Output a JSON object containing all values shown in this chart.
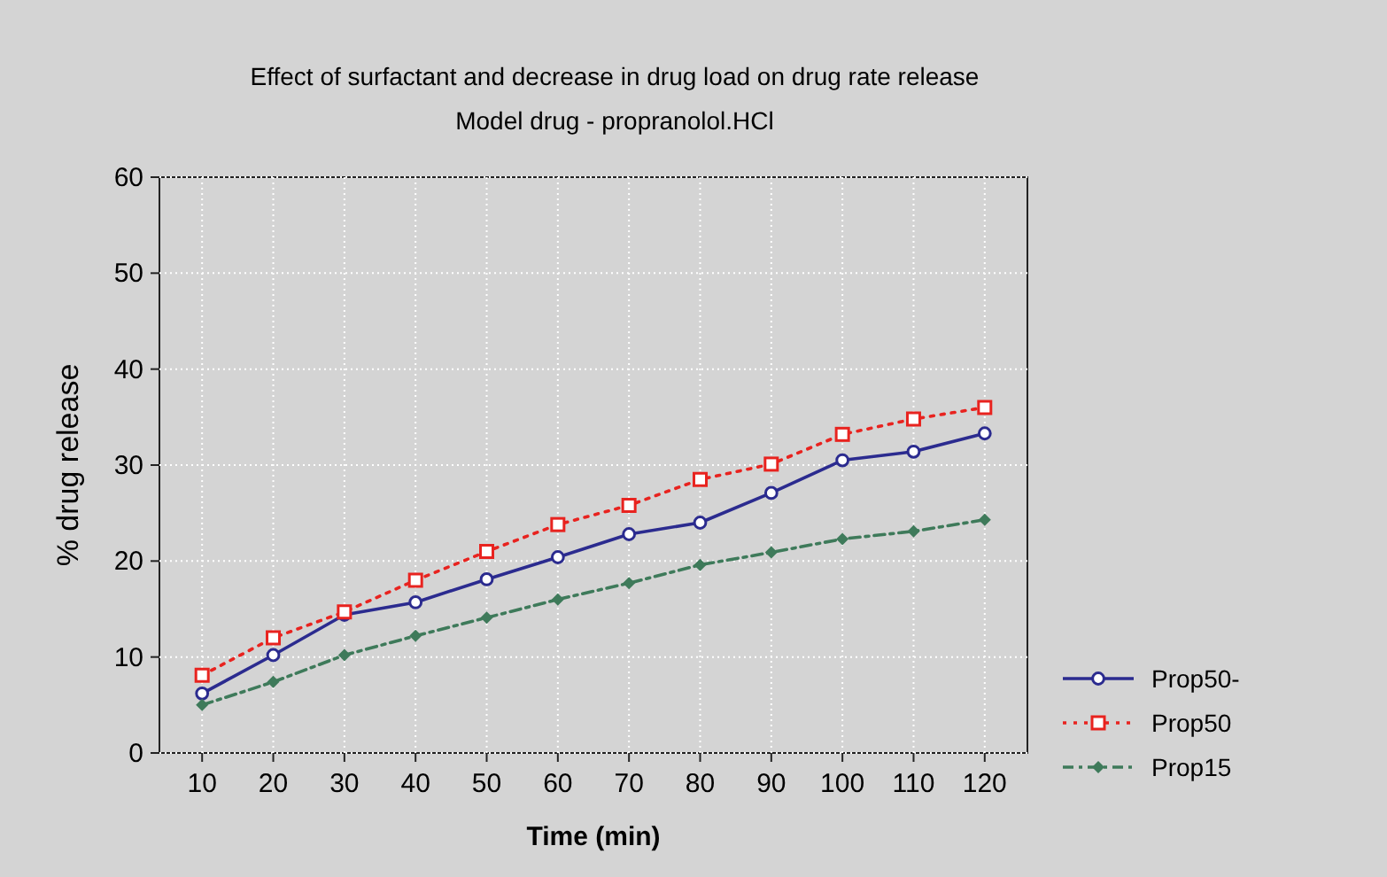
{
  "chart_data": {
    "type": "line",
    "title": "Effect of surfactant and decrease in drug load on drug rate release",
    "subtitle": "Model drug - propranolol.HCl",
    "xlabel": "Time (min)",
    "ylabel": "% drug release",
    "x": [
      10,
      20,
      30,
      40,
      50,
      60,
      70,
      80,
      90,
      100,
      110,
      120
    ],
    "xlim": [
      4,
      126
    ],
    "xticks": [
      10,
      20,
      30,
      40,
      50,
      60,
      70,
      80,
      90,
      100,
      110,
      120
    ],
    "ylim": [
      0,
      60
    ],
    "yticks": [
      0,
      10,
      20,
      30,
      40,
      50,
      60
    ],
    "grid": true,
    "legend": "bottom right",
    "series": [
      {
        "name": "Prop50-",
        "color": "#2b2b8f",
        "marker": "circle",
        "line_style": "solid",
        "values": [
          6.2,
          10.2,
          14.4,
          15.7,
          18.1,
          20.4,
          22.8,
          24.0,
          27.1,
          30.5,
          31.4,
          33.3
        ]
      },
      {
        "name": "Prop50",
        "color": "#e8231f",
        "marker": "square",
        "line_style": "dotted",
        "values": [
          8.1,
          12.0,
          14.7,
          18.0,
          21.0,
          23.8,
          25.8,
          28.5,
          30.1,
          33.2,
          34.8,
          36.0
        ]
      },
      {
        "name": "Prop15",
        "color": "#3e7a5a",
        "marker": "diamond",
        "line_style": "dashdot",
        "values": [
          5.0,
          7.4,
          10.2,
          12.2,
          14.1,
          16.0,
          17.7,
          19.6,
          20.9,
          22.3,
          23.1,
          24.3
        ]
      }
    ]
  }
}
